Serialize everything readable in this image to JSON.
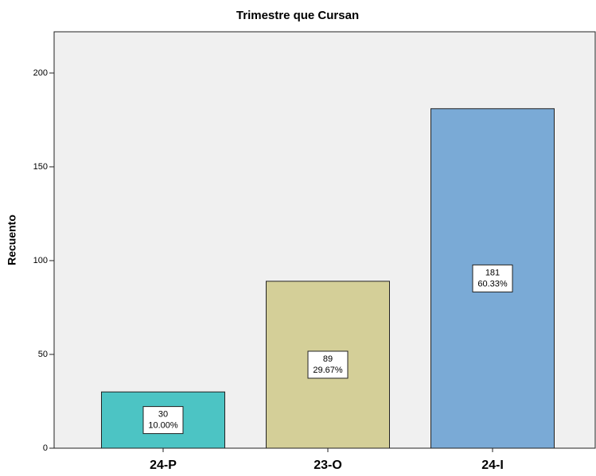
{
  "chart_data": {
    "type": "bar",
    "title": "Trimestre que Cursan",
    "ylabel": "Recuento",
    "categories": [
      "24-P",
      "23-O",
      "24-I"
    ],
    "values": [
      30,
      89,
      181
    ],
    "percent_labels": [
      "10.00%",
      "29.67%",
      "60.33%"
    ],
    "colors": [
      "#4cc4c4",
      "#d4cf98",
      "#7aaad6"
    ],
    "ylim": [
      0,
      222
    ],
    "yticks": [
      0,
      50,
      100,
      150,
      200
    ],
    "grid": false
  }
}
